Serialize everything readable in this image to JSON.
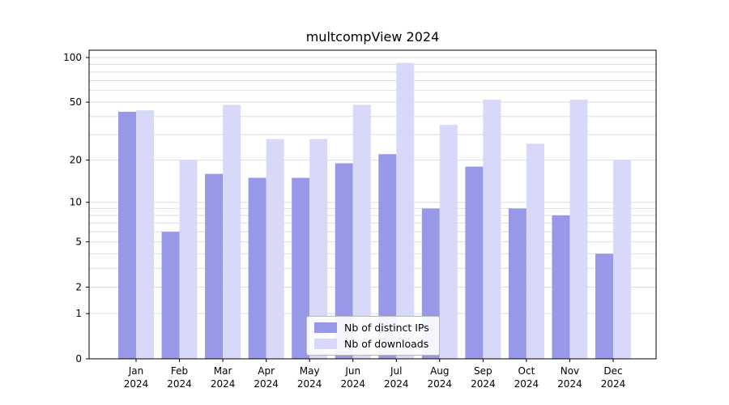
{
  "chart_data": {
    "type": "bar",
    "title": "multcompView 2024",
    "categories": [
      "Jan",
      "Feb",
      "Mar",
      "Apr",
      "May",
      "Jun",
      "Jul",
      "Aug",
      "Sep",
      "Oct",
      "Nov",
      "Dec"
    ],
    "year_label": "2024",
    "series": [
      {
        "name": "Nb of distinct IPs",
        "color": "#9898e8",
        "values": [
          43,
          6,
          16,
          15,
          15,
          19,
          22,
          9,
          18,
          9,
          8,
          4
        ]
      },
      {
        "name": "Nb of downloads",
        "color": "#d8d8f8",
        "values": [
          44,
          20,
          48,
          28,
          28,
          48,
          92,
          35,
          52,
          26,
          52,
          20
        ]
      }
    ],
    "y_ticks": [
      0,
      1,
      2,
      5,
      10,
      20,
      50,
      100
    ],
    "y_scale": "log1p",
    "ylim": [
      0,
      112
    ],
    "grid": true,
    "gridline_values": [
      1,
      2,
      3,
      4,
      5,
      6,
      7,
      8,
      9,
      10,
      20,
      30,
      40,
      50,
      60,
      70,
      80,
      90,
      100
    ],
    "legend_position": "lower center",
    "colors": {
      "grid": "#dedede",
      "axis": "#000000",
      "background": "#ffffff"
    }
  }
}
